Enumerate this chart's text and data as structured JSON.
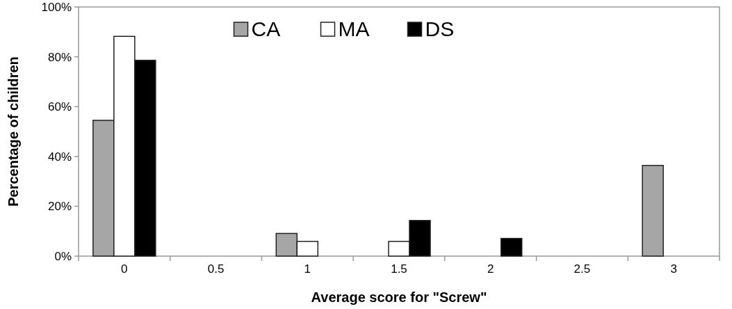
{
  "chart_data": {
    "type": "bar",
    "xlabel": "Average score for \"Screw\"",
    "ylabel": "Percentage of children",
    "categories": [
      "0",
      "0.5",
      "1",
      "1.5",
      "2",
      "2.5",
      "3"
    ],
    "series": [
      {
        "name": "CA",
        "color": "#a6a6a6",
        "values": [
          54.5,
          0,
          9.1,
          0,
          0,
          0,
          36.4
        ]
      },
      {
        "name": "MA",
        "color": "#ffffff",
        "values": [
          88.2,
          0,
          5.9,
          5.9,
          0,
          0,
          0
        ]
      },
      {
        "name": "DS",
        "color": "#000000",
        "values": [
          78.6,
          0,
          0,
          14.3,
          7.1,
          0,
          0
        ]
      }
    ],
    "ylim": [
      0,
      100
    ],
    "yticks": [
      {
        "value": 0,
        "label": "0%"
      },
      {
        "value": 20,
        "label": "20%"
      },
      {
        "value": 40,
        "label": "40%"
      },
      {
        "value": 60,
        "label": "60%"
      },
      {
        "value": 80,
        "label": "80%"
      },
      {
        "value": 100,
        "label": "100%"
      }
    ],
    "legend": "top"
  }
}
